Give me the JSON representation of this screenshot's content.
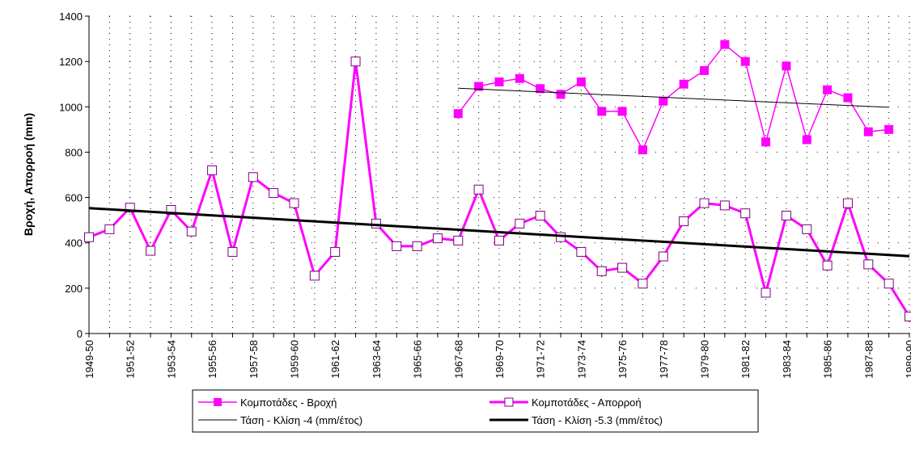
{
  "chart_data": {
    "type": "line",
    "ylabel": "Βροχή, Απορροή (mm)",
    "categories": [
      "1949-50",
      null,
      "1951-52",
      null,
      "1953-54",
      null,
      "1955-56",
      null,
      "1957-58",
      null,
      "1959-60",
      null,
      "1961-62",
      null,
      "1963-64",
      null,
      "1965-66",
      null,
      "1967-68",
      null,
      "1969-70",
      null,
      "1971-72",
      null,
      "1973-74",
      null,
      "1975-76",
      null,
      "1977-78",
      null,
      "1979-80",
      null,
      "1981-82",
      null,
      "1983-84",
      null,
      "1985-86",
      null,
      "1987-88",
      null,
      "1989-90"
    ],
    "ylim": [
      0,
      1400
    ],
    "yticks": [
      0,
      200,
      400,
      600,
      800,
      1000,
      1200,
      1400
    ],
    "grid": true,
    "series": [
      {
        "name": "Κομποτάδες - Βροχή",
        "color": "#ff00ff",
        "marker": "square-filled",
        "line_width": 1.5,
        "values": [
          null,
          null,
          null,
          null,
          null,
          null,
          null,
          null,
          null,
          null,
          null,
          null,
          null,
          null,
          null,
          null,
          null,
          null,
          970,
          1090,
          1110,
          1125,
          1080,
          1055,
          1110,
          980,
          980,
          810,
          1025,
          1100,
          1160,
          1275,
          1200,
          845,
          1180,
          855,
          1075,
          1040,
          890,
          900,
          null
        ]
      },
      {
        "name": "Κομποτάδες - Απορροή",
        "color": "#ff00ff",
        "marker": "square-open",
        "marker_edge": "#800080",
        "line_width": 3,
        "values": [
          425,
          460,
          555,
          365,
          545,
          450,
          720,
          360,
          690,
          620,
          575,
          255,
          360,
          1200,
          485,
          385,
          385,
          420,
          410,
          635,
          410,
          485,
          520,
          425,
          360,
          275,
          290,
          220,
          340,
          495,
          575,
          565,
          530,
          180,
          520,
          460,
          300,
          575,
          305,
          220,
          75
        ]
      },
      {
        "name": "Τάση - Κλίση -4 (mm/έτος)",
        "color": "#000000",
        "marker": "none",
        "line_width": 1,
        "values": [
          null,
          null,
          null,
          null,
          null,
          null,
          null,
          null,
          null,
          null,
          null,
          null,
          null,
          null,
          null,
          null,
          null,
          null,
          1082,
          1078,
          1074,
          1070,
          1066,
          1062,
          1058,
          1054,
          1050,
          1046,
          1042,
          1038,
          1034,
          1030,
          1026,
          1022,
          1018,
          1014,
          1010,
          1006,
          1002,
          998,
          null
        ]
      },
      {
        "name": "Τάση - Κλίση -5.3 (mm/έτος)",
        "color": "#000000",
        "marker": "none",
        "line_width": 3,
        "values": [
          553,
          547.7,
          542.4,
          537.1,
          531.8,
          526.5,
          521.2,
          515.9,
          510.6,
          505.3,
          500,
          494.7,
          489.4,
          484.1,
          478.8,
          473.5,
          468.2,
          462.9,
          457.6,
          452.3,
          447,
          441.7,
          436.4,
          431.1,
          425.8,
          420.5,
          415.2,
          409.9,
          404.6,
          399.3,
          394,
          388.7,
          383.4,
          378.1,
          372.8,
          367.5,
          362.2,
          356.9,
          351.6,
          346.3,
          341
        ]
      }
    ]
  }
}
